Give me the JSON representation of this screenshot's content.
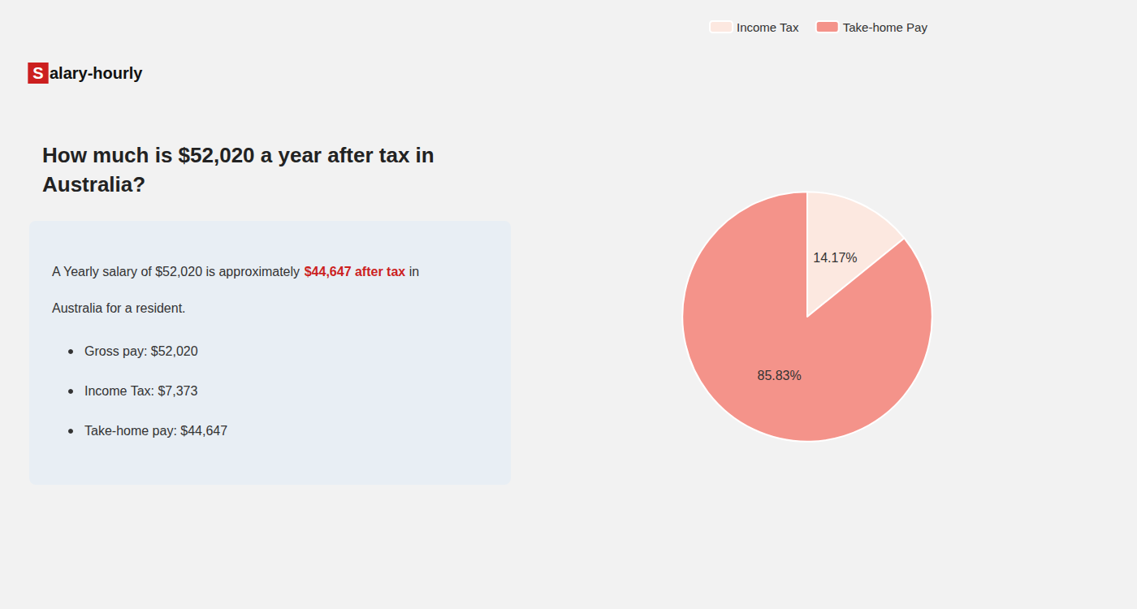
{
  "chart_data": {
    "type": "pie",
    "title": "How much is $52,020 a year after tax in\nAustralia?",
    "categories": [
      "Income Tax",
      "Take-home Pay"
    ],
    "values": [
      14.17,
      85.83
    ],
    "value_labels": [
      "14.17%",
      "85.83%"
    ],
    "colors": [
      "#fce8e0",
      "#f4938a"
    ],
    "data_labels": true,
    "legend": "top",
    "annotations": [
      {
        "text": "S",
        "color": "#cc1f1f"
      },
      {
        "text": "alary-hourly"
      },
      {
        "text": "A Yearly salary of $52,020 is approximately "
      },
      {
        "text": "$44,647 after tax",
        "color": "#cc1f1f"
      },
      {
        "text": " in"
      },
      {
        "text": "Australia for a resident."
      },
      {
        "text": "Gross pay: $52,020"
      },
      {
        "text": "Income Tax: $7,373"
      },
      {
        "text": "Take-home pay: $44,647"
      }
    ]
  }
}
